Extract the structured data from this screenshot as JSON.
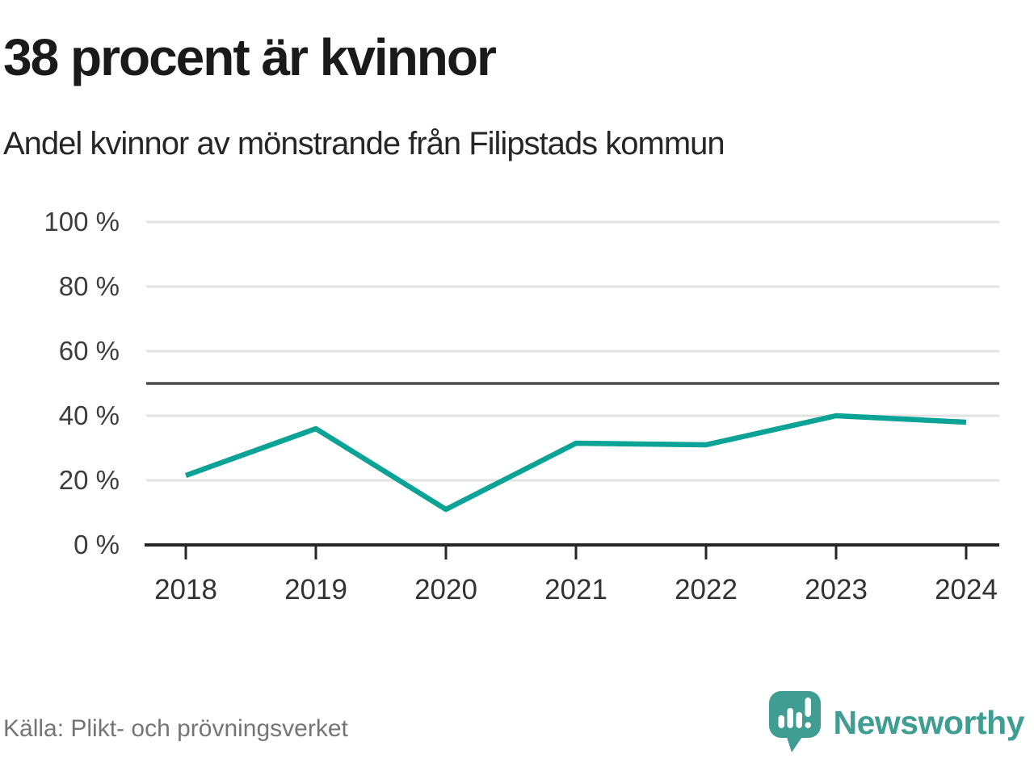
{
  "header": {
    "title": "38 procent är kvinnor",
    "subtitle": "Andel kvinnor av mönstrande från Filipstads kommun"
  },
  "chart_data": {
    "type": "line",
    "title": "38 procent är kvinnor",
    "subtitle": "Andel kvinnor av mönstrande från Filipstads kommun",
    "categories": [
      "2018",
      "2019",
      "2020",
      "2021",
      "2022",
      "2023",
      "2024"
    ],
    "series": [
      {
        "name": "Andel kvinnor av mönstrande",
        "values": [
          21.5,
          36,
          11,
          31.5,
          31,
          40,
          38
        ]
      }
    ],
    "unit": "%",
    "ylim": [
      0,
      100
    ],
    "yticks": [
      0,
      20,
      40,
      60,
      80,
      100
    ],
    "ytick_suffix": " %",
    "refline_value": 50,
    "grid": true,
    "legend": "none",
    "colors": {
      "line": "#0aa396",
      "grid": "#e3e3e3",
      "refline": "#4a4a4a",
      "axis": "#262626",
      "tick_label": "#3d3d3d"
    }
  },
  "footer": {
    "source": "Källa: Plikt- och prövningsverket",
    "brand": "Newsworthy",
    "brand_color": "#3f9d92"
  }
}
